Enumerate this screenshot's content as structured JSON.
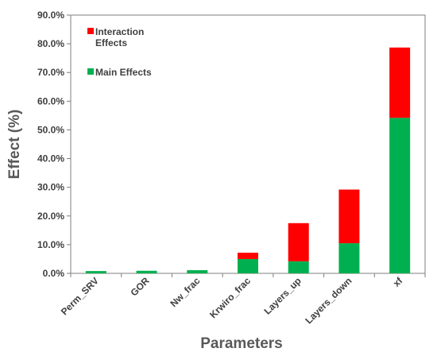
{
  "chart_data": {
    "type": "bar",
    "stacked": true,
    "categories": [
      "Perm_SRV",
      "GOR",
      "Nw_frac",
      "Krwiro_frac",
      "Layers_up",
      "Layers_down",
      "xf"
    ],
    "series": [
      {
        "name": "Main Effects",
        "color": "#00b050",
        "values": [
          0.8,
          0.9,
          1.1,
          5.0,
          4.2,
          10.5,
          54.2
        ]
      },
      {
        "name": "Interaction Effects",
        "color": "#ff0000",
        "values": [
          0.0,
          0.0,
          0.0,
          2.2,
          13.3,
          18.7,
          24.5
        ]
      }
    ],
    "xlabel": "Parameters",
    "ylabel": "Effect (%)",
    "ylim": [
      0,
      90
    ],
    "yticks": [
      0,
      10,
      20,
      30,
      40,
      50,
      60,
      70,
      80,
      90
    ],
    "ytick_format": "percent_1dp",
    "grid": false,
    "legend": {
      "placement": "top-left",
      "entries": [
        {
          "lines": [
            "Interaction",
            "Effects"
          ],
          "color": "#ff0000"
        },
        {
          "lines": [
            "Main Effects"
          ],
          "color": "#00b050"
        }
      ]
    }
  }
}
